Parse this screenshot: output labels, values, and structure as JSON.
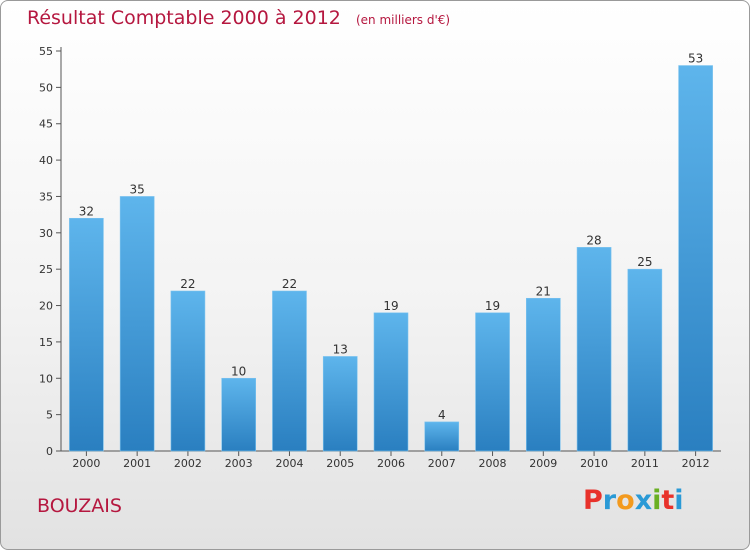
{
  "header": {
    "title": "Résultat Comptable 2000 à 2012",
    "unit": "(en milliers d'€)"
  },
  "commune": "BOUZAIS",
  "brand": {
    "letters": [
      "P",
      "r",
      "o",
      "x",
      "i",
      "t",
      "i"
    ],
    "colors": [
      "#e8322b",
      "#2a9ad6",
      "#f39a1e",
      "#2a9ad6",
      "#6ab023",
      "#e8322b",
      "#2a9ad6"
    ]
  },
  "colors": {
    "bar_top": "#5eb5ec",
    "bar_bottom": "#2a7fc0",
    "axis": "#555555"
  },
  "chart_data": {
    "type": "bar",
    "title": "Résultat Comptable 2000 à 2012",
    "xlabel": "",
    "ylabel": "",
    "categories": [
      "2000",
      "2001",
      "2002",
      "2003",
      "2004",
      "2005",
      "2006",
      "2007",
      "2008",
      "2009",
      "2010",
      "2011",
      "2012"
    ],
    "values": [
      32,
      35,
      22,
      10,
      22,
      13,
      19,
      4,
      19,
      21,
      28,
      25,
      53
    ],
    "ylim": [
      0,
      55
    ],
    "yticks": [
      0,
      5,
      10,
      15,
      20,
      25,
      30,
      35,
      40,
      45,
      50,
      55
    ],
    "grid": false,
    "legend": "none"
  }
}
